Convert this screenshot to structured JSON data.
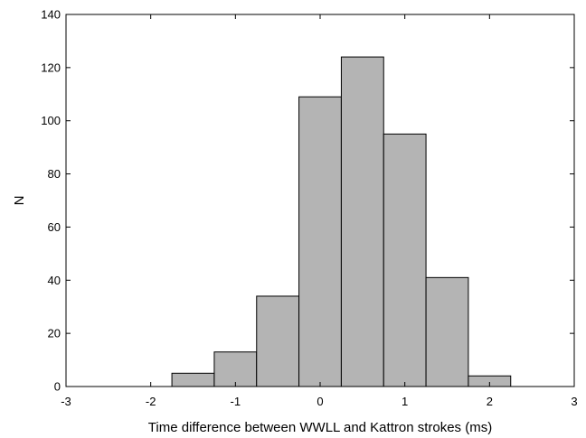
{
  "chart_data": {
    "type": "bar",
    "bin_edges": [
      -1.75,
      -1.25,
      -0.75,
      -0.25,
      0.25,
      0.75,
      1.25,
      1.75,
      2.25
    ],
    "values": [
      5,
      13,
      34,
      109,
      124,
      95,
      41,
      4
    ],
    "xlabel": "Time difference between WWLL and Kattron strokes (ms)",
    "ylabel": "N",
    "xlim": [
      -3,
      3
    ],
    "ylim": [
      0,
      140
    ],
    "x_ticks": [
      "-3",
      "-2",
      "-1",
      "0",
      "1",
      "2",
      "3"
    ],
    "y_ticks": [
      "0",
      "20",
      "40",
      "60",
      "80",
      "100",
      "120",
      "140"
    ],
    "grid": false,
    "bar_color": "#b4b4b4",
    "bar_edge_color": "#000000"
  }
}
